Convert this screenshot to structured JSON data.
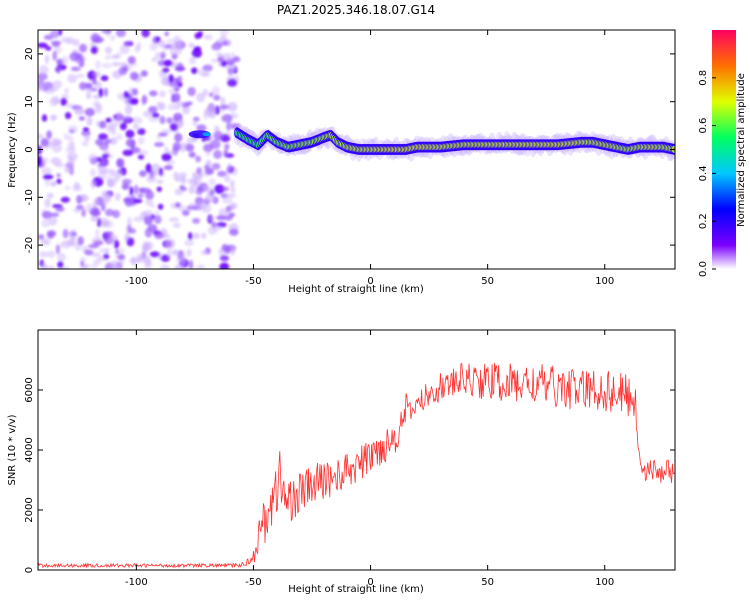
{
  "title": "PAZ1.2025.346.18.07.G14",
  "colorbar": {
    "label": "Normalized spectral amplitude",
    "ticks": [
      0.0,
      0.2,
      0.4,
      0.6,
      0.8
    ],
    "tick_labels": [
      "0.0",
      "0.2",
      "0.4",
      "0.6",
      "0.8"
    ],
    "range": [
      0,
      1
    ],
    "colors": [
      "#ffffff",
      "#7a00ff",
      "#0000ff",
      "#00c8ff",
      "#00ff60",
      "#e0ff00",
      "#ff7000",
      "#ff0060"
    ]
  },
  "chart_data": [
    {
      "type": "heatmap",
      "name": "spectrogram",
      "xlabel": "Height of straight line (km)",
      "ylabel": "Frequency (Hz)",
      "xlim": [
        -142,
        130
      ],
      "ylim": [
        -25,
        25
      ],
      "xticks": [
        -100,
        -50,
        0,
        50,
        100
      ],
      "xtick_labels": [
        "-100",
        "-50",
        "0",
        "50",
        "100"
      ],
      "yticks": [
        -20,
        -10,
        0,
        10,
        20
      ],
      "ytick_labels": [
        "-20",
        "-10",
        "0",
        "10",
        "20"
      ],
      "noise_region_x": [
        -142,
        -57
      ],
      "peak_track": {
        "x": [
          -57,
          -52,
          -48,
          -44,
          -40,
          -35,
          -30,
          -25,
          -20,
          -17,
          -14,
          -10,
          -5,
          0,
          5,
          10,
          15,
          20,
          30,
          40,
          50,
          60,
          70,
          80,
          90,
          95,
          100,
          105,
          110,
          115,
          120,
          125,
          130
        ],
        "freq": [
          3.5,
          2,
          1,
          3,
          1.5,
          0.5,
          1,
          1.5,
          2.5,
          3,
          1.5,
          0.5,
          0,
          0,
          0,
          0,
          0,
          0.5,
          0.5,
          1,
          1,
          1,
          1,
          1,
          1.5,
          1.5,
          1,
          0.5,
          0,
          0.5,
          0.5,
          0.5,
          0
        ],
        "amplitude": [
          0.5,
          0.55,
          0.5,
          0.6,
          0.65,
          0.7,
          0.75,
          0.75,
          0.8,
          0.85,
          0.8,
          0.85,
          0.9,
          0.9,
          0.95,
          0.98,
          0.95,
          0.95,
          0.9,
          0.9,
          0.9,
          0.92,
          0.95,
          0.95,
          0.9,
          0.85,
          0.9,
          0.85,
          0.8,
          0.85,
          0.9,
          0.85,
          0.8
        ]
      }
    },
    {
      "type": "line",
      "name": "snr",
      "xlabel": "Height of straight line (km)",
      "ylabel": "SNR (10 * v/v)",
      "xlim": [
        -142,
        130
      ],
      "ylim": [
        0,
        8000
      ],
      "xticks": [
        -100,
        -50,
        0,
        50,
        100
      ],
      "xtick_labels": [
        "-100",
        "-50",
        "0",
        "50",
        "100"
      ],
      "yticks": [
        0,
        2000,
        4000,
        6000
      ],
      "ytick_labels": [
        "0",
        "2000",
        "4000",
        "6000"
      ],
      "color": "#ff3030",
      "series": [
        {
          "name": "SNR",
          "x": [
            -142,
            -130,
            -120,
            -110,
            -100,
            -90,
            -80,
            -70,
            -60,
            -55,
            -52,
            -50,
            -48,
            -45,
            -42,
            -40,
            -39,
            -38,
            -35,
            -30,
            -25,
            -20,
            -15,
            -10,
            -5,
            0,
            5,
            10,
            12,
            14,
            15,
            16,
            20,
            25,
            30,
            35,
            40,
            45,
            50,
            60,
            70,
            80,
            90,
            100,
            105,
            110,
            113,
            114,
            116,
            120,
            125,
            130
          ],
          "values": [
            150,
            150,
            150,
            150,
            150,
            150,
            150,
            150,
            150,
            170,
            300,
            500,
            1000,
            1800,
            2200,
            2500,
            4000,
            2400,
            2300,
            2600,
            2800,
            3000,
            3100,
            3300,
            3500,
            3800,
            4100,
            4400,
            4700,
            5000,
            5500,
            5200,
            5500,
            5900,
            6100,
            6200,
            6400,
            6300,
            6300,
            6200,
            6200,
            6100,
            6000,
            6000,
            5900,
            5800,
            5700,
            4300,
            3400,
            3300,
            3300,
            3300
          ],
          "noise_amplitude": [
            60,
            60,
            60,
            60,
            60,
            60,
            60,
            60,
            60,
            80,
            150,
            300,
            500,
            900,
            1000,
            1000,
            600,
            900,
            800,
            700,
            700,
            700,
            600,
            600,
            600,
            600,
            600,
            600,
            600,
            600,
            500,
            400,
            400,
            450,
            500,
            500,
            550,
            600,
            650,
            700,
            700,
            700,
            700,
            750,
            750,
            750,
            750,
            500,
            400,
            400,
            400,
            400
          ]
        }
      ]
    }
  ]
}
